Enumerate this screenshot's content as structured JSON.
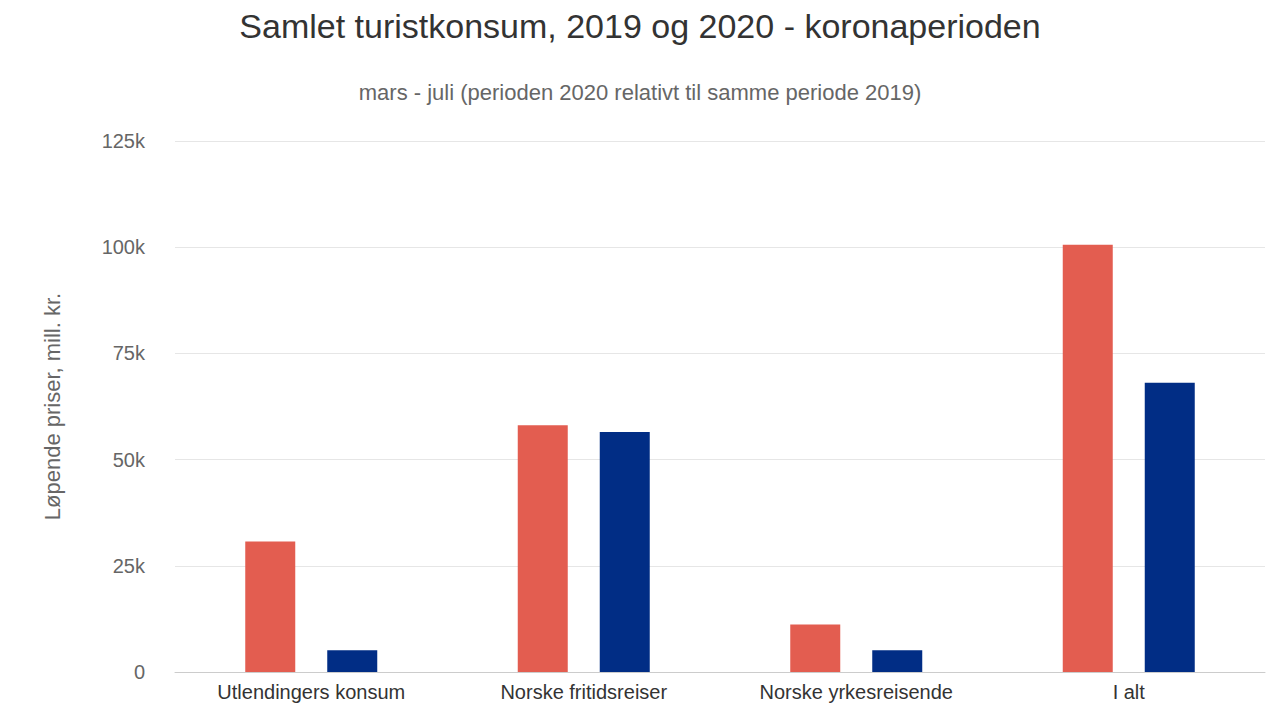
{
  "chart_data": {
    "type": "bar",
    "title": "Samlet turistkonsum, 2019 og 2020 - koronaperioden",
    "subtitle": "mars - juli (perioden 2020 relativt til samme periode 2019)",
    "y_label": "Løpende priser, mill. kr.",
    "categories": [
      "Utlendingers konsum",
      "Norske fritidsreiser",
      "Norske yrkesreisende",
      "I alt"
    ],
    "series": [
      {
        "color": "#e35d50",
        "values": [
          30700,
          58100,
          11200,
          100600
        ]
      },
      {
        "color": "#012d85",
        "values": [
          5100,
          56500,
          5100,
          68100
        ]
      }
    ],
    "ylim": [
      0,
      125000
    ],
    "yticks": [
      {
        "value": 0,
        "label": "0"
      },
      {
        "value": 25000,
        "label": "25k"
      },
      {
        "value": 50000,
        "label": "50k"
      },
      {
        "value": 75000,
        "label": "75k"
      },
      {
        "value": 100000,
        "label": "100k"
      },
      {
        "value": 125000,
        "label": "125k"
      }
    ],
    "grid": true
  }
}
